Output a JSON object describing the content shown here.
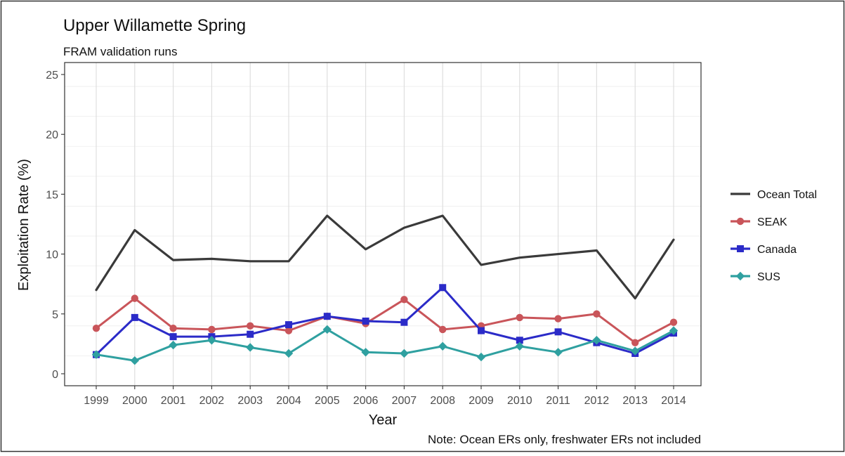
{
  "chart_data": {
    "type": "line",
    "title": "Upper Willamette Spring",
    "subtitle": "FRAM validation runs",
    "xlabel": "Year",
    "ylabel": "Exploitation Rate (%)",
    "caption": "Note: Ocean ERs only, freshwater ERs not included",
    "ylim": [
      -1,
      26
    ],
    "yticks": [
      0,
      5,
      10,
      15,
      20,
      25
    ],
    "grid": true,
    "legend_position": "right",
    "categories": [
      "1999",
      "2000",
      "2001",
      "2002",
      "2003",
      "2004",
      "2005",
      "2006",
      "2007",
      "2008",
      "2009",
      "2010",
      "2011",
      "2012",
      "2013",
      "2014"
    ],
    "series": [
      {
        "name": "Ocean Total",
        "color": "#3a3a3a",
        "marker": "none",
        "values": [
          7.0,
          12.0,
          9.5,
          9.6,
          9.4,
          9.4,
          13.2,
          10.4,
          12.2,
          13.2,
          9.1,
          9.7,
          10.0,
          10.3,
          6.3,
          11.2
        ]
      },
      {
        "name": "SEAK",
        "color": "#c9555a",
        "marker": "circle",
        "values": [
          3.8,
          6.3,
          3.8,
          3.7,
          4.0,
          3.6,
          4.8,
          4.2,
          6.2,
          3.7,
          4.0,
          4.7,
          4.6,
          5.0,
          2.6,
          4.3
        ]
      },
      {
        "name": "Canada",
        "color": "#2b2bc8",
        "marker": "square",
        "values": [
          1.6,
          4.7,
          3.1,
          3.1,
          3.3,
          4.1,
          4.8,
          4.4,
          4.3,
          7.2,
          3.6,
          2.8,
          3.5,
          2.6,
          1.7,
          3.4
        ]
      },
      {
        "name": "SUS",
        "color": "#2fa0a0",
        "marker": "diamond",
        "values": [
          1.6,
          1.1,
          2.4,
          2.8,
          2.2,
          1.7,
          3.7,
          1.8,
          1.7,
          2.3,
          1.4,
          2.3,
          1.8,
          2.8,
          1.9,
          3.6
        ]
      }
    ]
  }
}
